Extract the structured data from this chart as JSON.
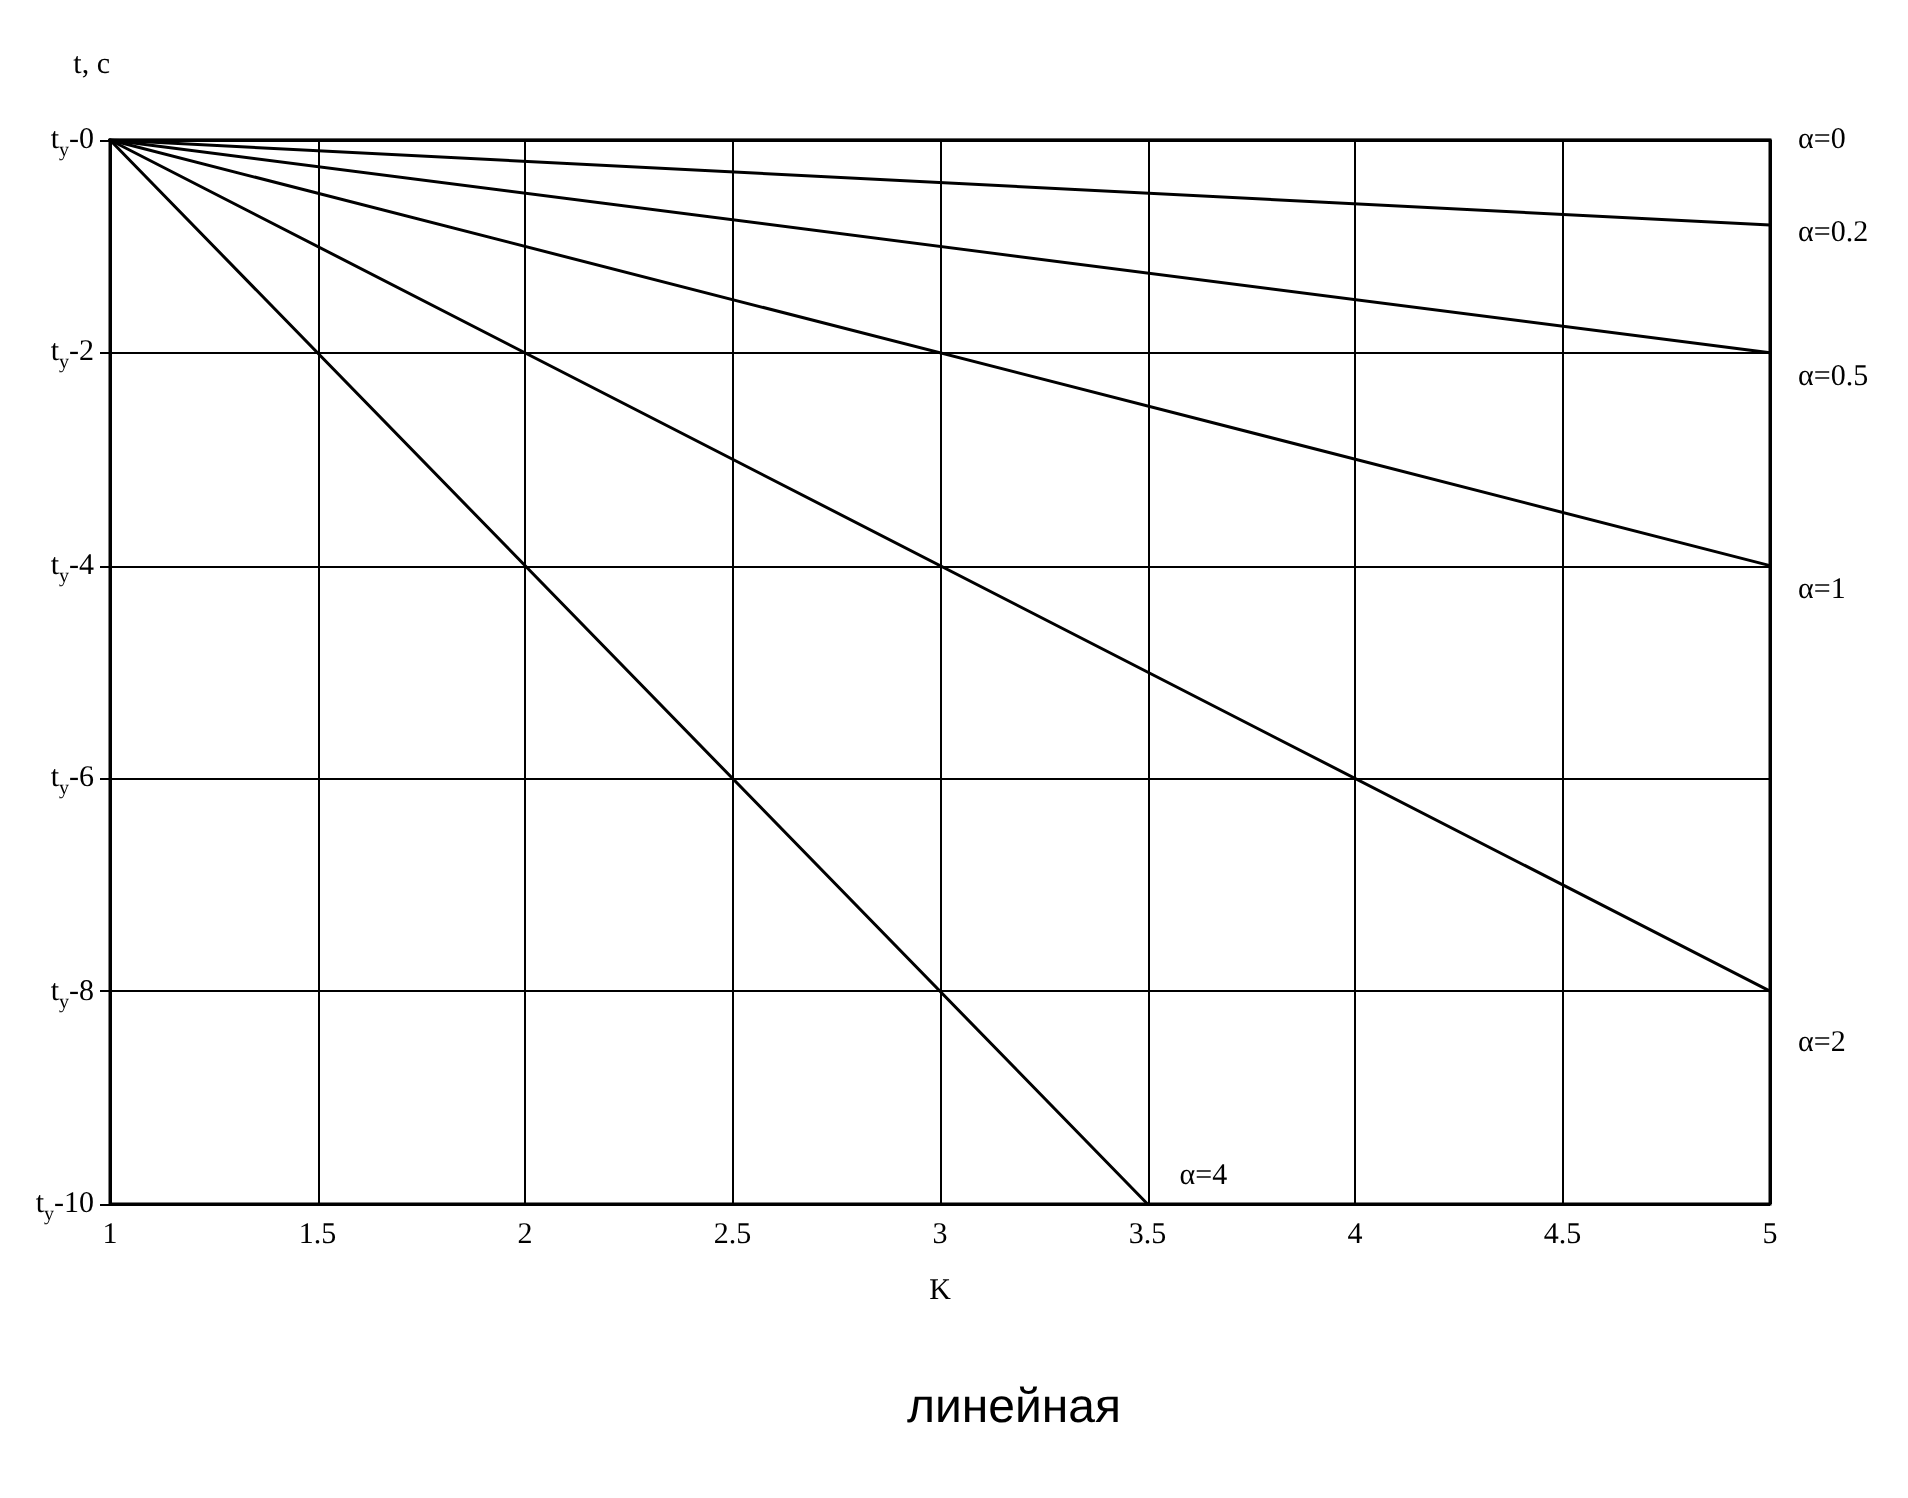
{
  "chart_data": {
    "type": "line",
    "xlabel": "K",
    "ylabel": "t, c",
    "x": [
      1,
      5
    ],
    "series": [
      {
        "name": "α=0",
        "color": "#000000",
        "values": [
          0,
          0
        ]
      },
      {
        "name": "α=0.2",
        "color": "#000000",
        "values": [
          0,
          -0.8
        ]
      },
      {
        "name": "α=0.5",
        "color": "#000000",
        "values": [
          0,
          -2
        ]
      },
      {
        "name": "α=1",
        "color": "#000000",
        "values": [
          0,
          -4
        ]
      },
      {
        "name": "α=2",
        "color": "#000000",
        "values": [
          0,
          -8
        ]
      },
      {
        "name": "α=4",
        "color": "#000000",
        "x": [
          1,
          3.5
        ],
        "values": [
          0,
          -10
        ]
      }
    ],
    "xlim": [
      1,
      5
    ],
    "xticks": [
      1,
      1.5,
      2,
      2.5,
      3,
      3.5,
      4,
      4.5,
      5
    ],
    "ylim": [
      -10,
      0
    ],
    "yticks": [
      {
        "value": 0,
        "label": "t$_{y}$-0"
      },
      {
        "value": -2,
        "label": "t$_{y}$-2"
      },
      {
        "value": -4,
        "label": "t$_{y}$-4"
      },
      {
        "value": -6,
        "label": "t$_{y}$-6"
      },
      {
        "value": -8,
        "label": "t$_{y}$-8"
      },
      {
        "value": -10,
        "label": "t$_{y}$-10"
      }
    ],
    "grid": true,
    "legend": false,
    "marker": "none",
    "line_style": "solid",
    "annotations": [
      "линейная"
    ]
  }
}
